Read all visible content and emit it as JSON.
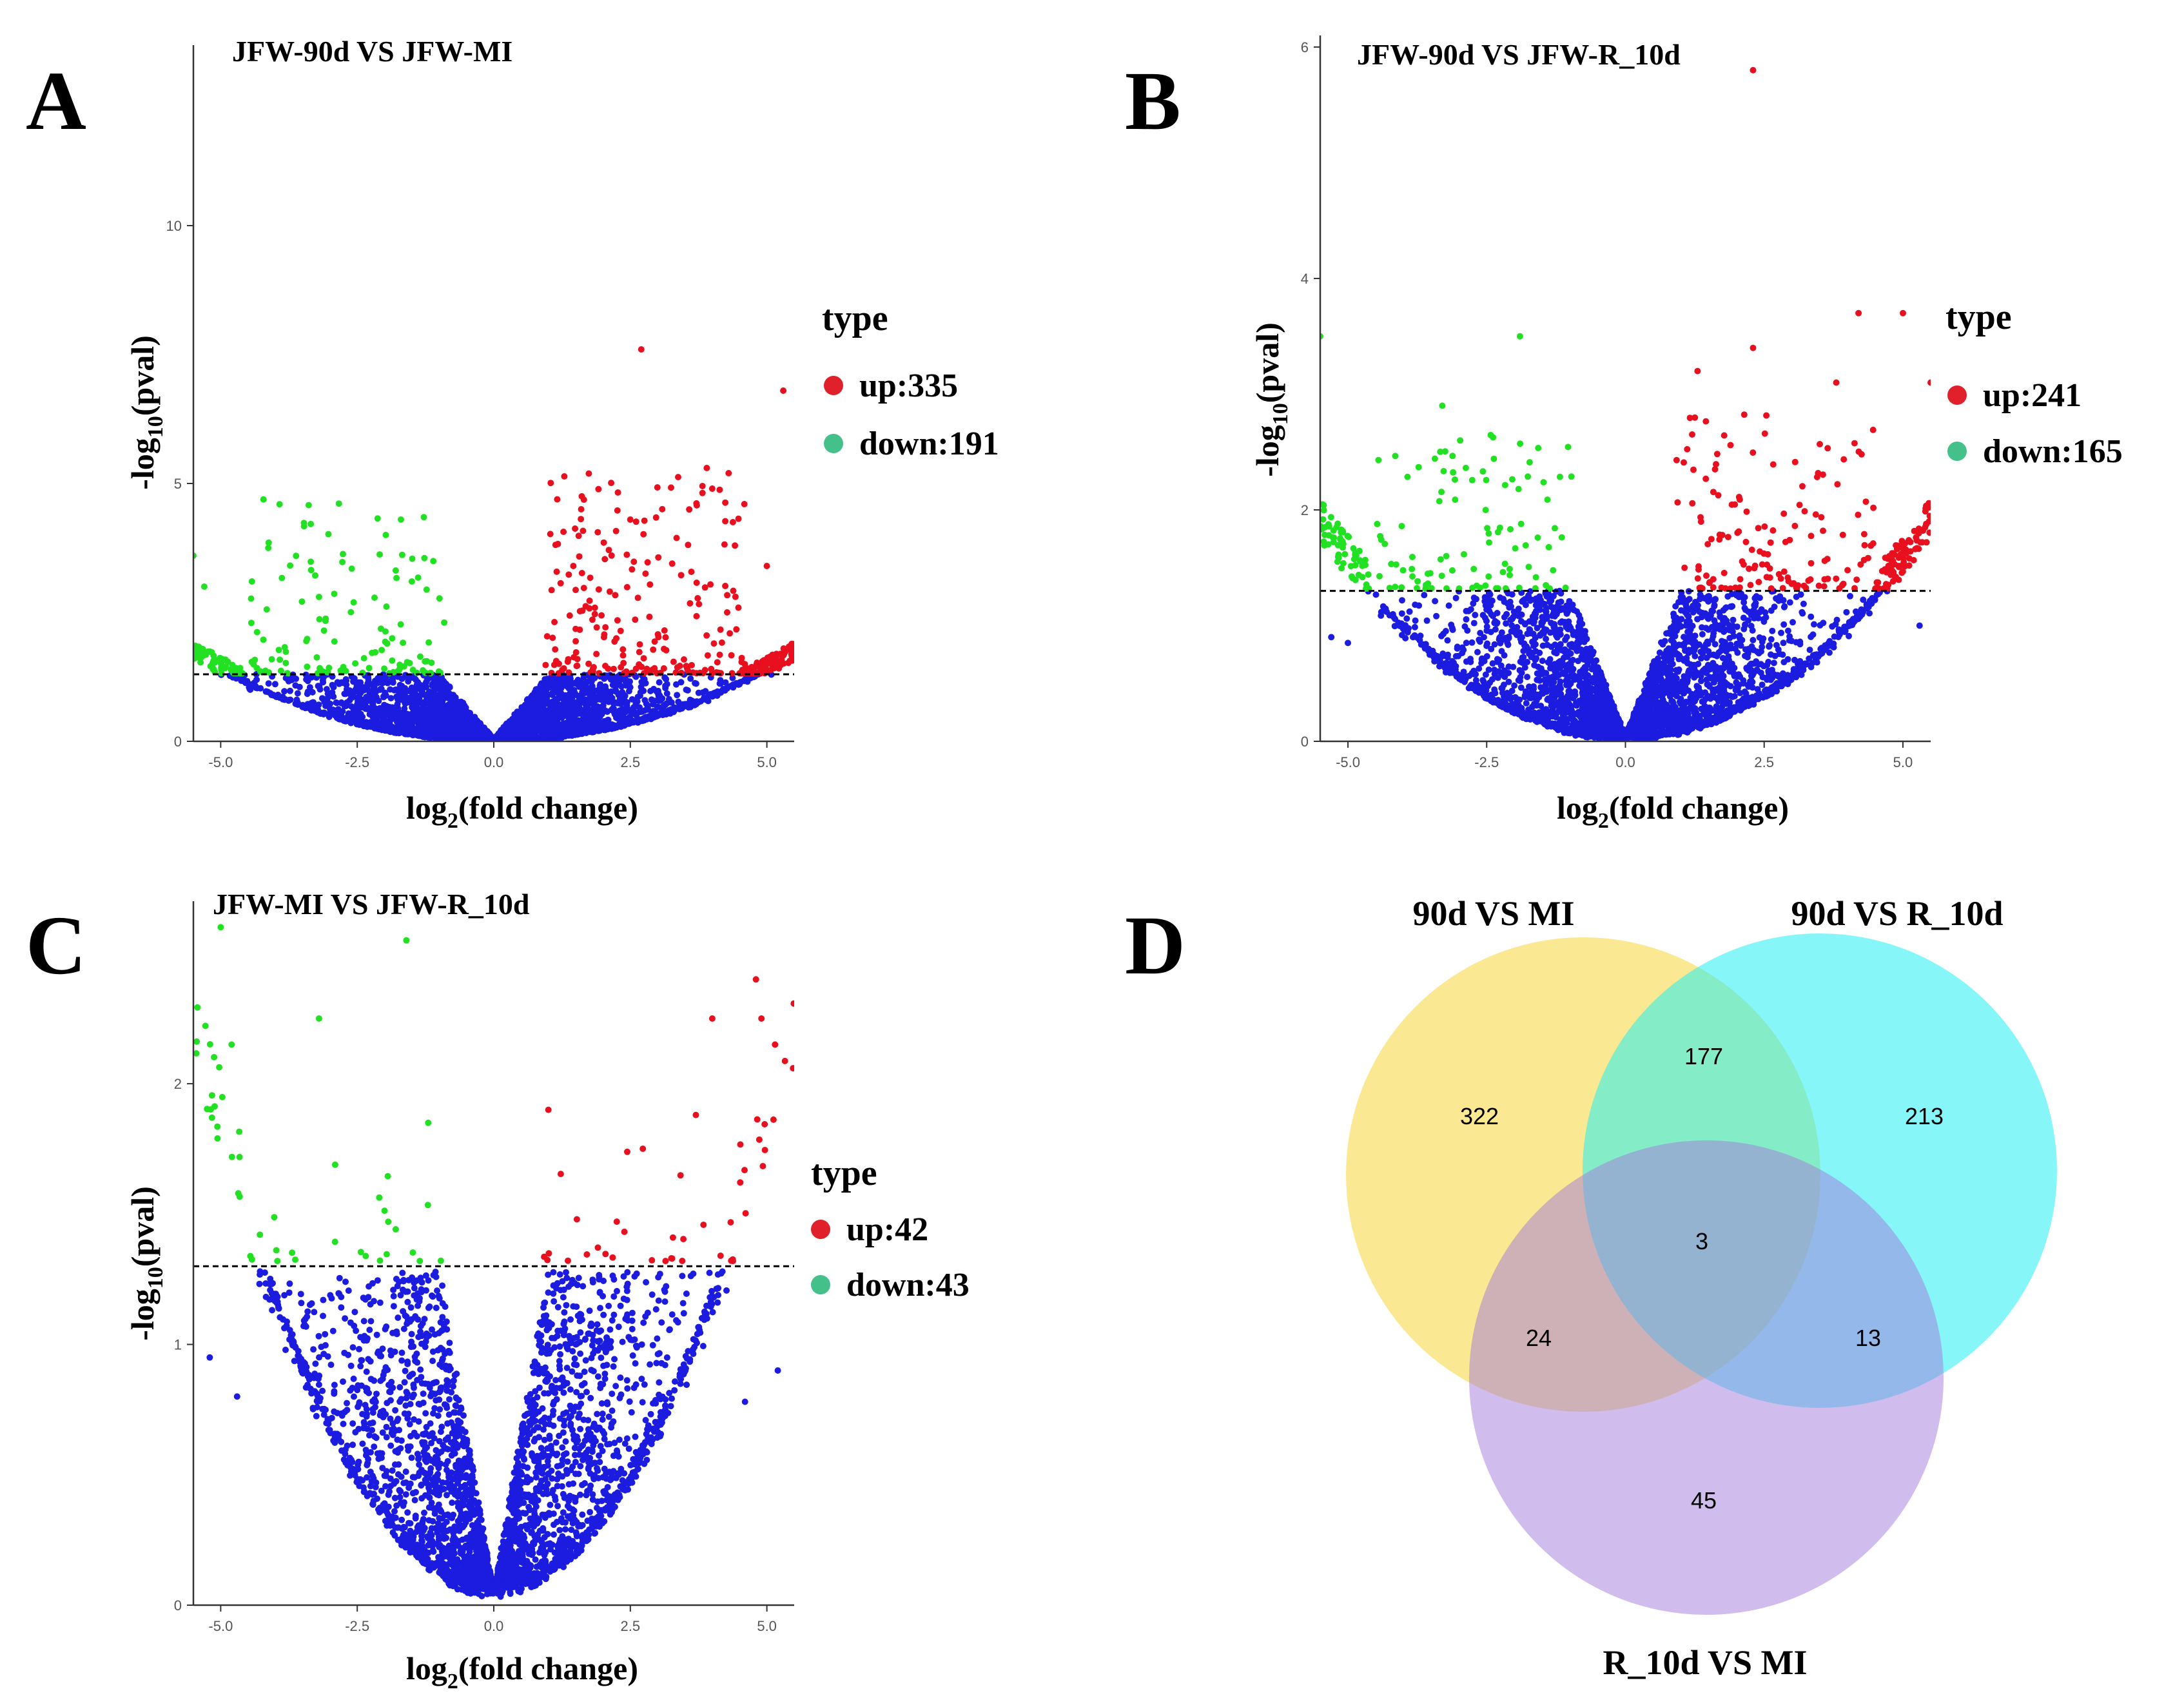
{
  "figure": {
    "panel_letters": [
      "A",
      "B",
      "C",
      "D"
    ]
  },
  "chart_data": [
    {
      "panel": "A",
      "type": "scatter",
      "subtype": "volcano",
      "title": "JFW-90d VS JFW-MI",
      "xlabel_pre": "log",
      "xlabel_sub": "2",
      "xlabel_post": "(fold change)",
      "ylabel_pre": "-log",
      "ylabel_sub": "10",
      "ylabel_post": "(pval)",
      "xlim": [
        -5.5,
        5.5
      ],
      "ylim": [
        0,
        13.5
      ],
      "xticks": [
        -5.0,
        -2.5,
        0.0,
        2.5,
        5.0
      ],
      "xtick_labels": [
        "-5.0",
        "-2.5",
        "0.0",
        "2.5",
        "5.0"
      ],
      "yticks": [
        0,
        5,
        10
      ],
      "ytick_labels": [
        "0",
        "5",
        "10"
      ],
      "threshold": 1.3,
      "legend": {
        "title": "type",
        "entries": [
          {
            "label": "up:335",
            "color": "#e0202a"
          },
          {
            "label": "down:191",
            "color": "#44c08a"
          }
        ]
      },
      "counts": {
        "up": 335,
        "down": 191
      },
      "colors": {
        "up": "#e8101f",
        "down": "#22e022",
        "ns": "#1c1ce0"
      },
      "ns_max": 1.3,
      "v_curve": {
        "a": 0.055,
        "b": 0.015
      },
      "outliers": [
        [
          2.7,
          7.6,
          "up"
        ],
        [
          5.3,
          6.8,
          "up"
        ],
        [
          3.9,
          5.3,
          "up"
        ],
        [
          4.3,
          5.2,
          "up"
        ],
        [
          4.0,
          4.9,
          "up"
        ],
        [
          1.6,
          4.5,
          "up"
        ],
        [
          2.5,
          4.3,
          "up"
        ],
        [
          -1.7,
          4.3,
          "down"
        ],
        [
          -5.5,
          3.6,
          "down"
        ],
        [
          -1.5,
          3.1,
          "down"
        ],
        [
          -3.2,
          2.8,
          "down"
        ],
        [
          5.0,
          3.4,
          "up"
        ],
        [
          -5.3,
          3.0,
          "down"
        ]
      ]
    },
    {
      "panel": "B",
      "type": "scatter",
      "subtype": "volcano",
      "title": "JFW-90d VS JFW-R_10d",
      "xlabel_pre": "log",
      "xlabel_sub": "2",
      "xlabel_post": "(fold change)",
      "ylabel_pre": "-log",
      "ylabel_sub": "10",
      "ylabel_post": "(pval)",
      "xlim": [
        -5.5,
        5.5
      ],
      "ylim": [
        0,
        6.1
      ],
      "xticks": [
        -5.0,
        -2.5,
        0.0,
        2.5,
        5.0
      ],
      "xtick_labels": [
        "-5.0",
        "-2.5",
        "0.0",
        "2.5",
        "5.0"
      ],
      "yticks": [
        0,
        2,
        4,
        6
      ],
      "ytick_labels": [
        "0",
        "2",
        "4",
        "6"
      ],
      "threshold": 1.3,
      "legend": {
        "title": "type",
        "entries": [
          {
            "label": "up:241",
            "color": "#e0202a"
          },
          {
            "label": "down:165",
            "color": "#44c08a"
          }
        ]
      },
      "counts": {
        "up": 241,
        "down": 165
      },
      "colors": {
        "up": "#e8101f",
        "down": "#22e022",
        "ns": "#1c1ce0"
      },
      "ns_max": 1.3,
      "v_curve": {
        "a": 0.06,
        "b": 0.03
      },
      "outliers": [
        [
          2.3,
          5.8,
          "up"
        ],
        [
          -1.9,
          3.5,
          "down"
        ],
        [
          4.2,
          3.7,
          "up"
        ],
        [
          5.0,
          3.7,
          "up"
        ],
        [
          2.3,
          3.4,
          "up"
        ],
        [
          1.3,
          3.2,
          "up"
        ],
        [
          3.8,
          3.1,
          "up"
        ],
        [
          -5.5,
          3.5,
          "down"
        ],
        [
          -3.3,
          2.9,
          "down"
        ],
        [
          5.5,
          3.1,
          "up"
        ],
        [
          -5.3,
          0.9,
          "ns"
        ],
        [
          -5.0,
          0.85,
          "ns"
        ],
        [
          5.3,
          1.0,
          "ns"
        ]
      ]
    },
    {
      "panel": "C",
      "type": "scatter",
      "subtype": "volcano",
      "title": "JFW-MI VS JFW-R_10d",
      "xlabel_pre": "log",
      "xlabel_sub": "2",
      "xlabel_post": "(fold change)",
      "ylabel_pre": "-log",
      "ylabel_sub": "10",
      "ylabel_post": "(pval)",
      "xlim": [
        -5.5,
        5.5
      ],
      "ylim": [
        0,
        2.7
      ],
      "xticks": [
        -5.0,
        -2.5,
        0.0,
        2.5,
        5.0
      ],
      "xtick_labels": [
        "-5.0",
        "-2.5",
        "0.0",
        "2.5",
        "5.0"
      ],
      "yticks": [
        0,
        1,
        2
      ],
      "ytick_labels": [
        "0",
        "1",
        "2"
      ],
      "threshold": 1.3,
      "legend": {
        "title": "type",
        "entries": [
          {
            "label": "up:42",
            "color": "#e0202a"
          },
          {
            "label": "down:43",
            "color": "#44c08a"
          }
        ]
      },
      "counts": {
        "up": 42,
        "down": 43
      },
      "colors": {
        "up": "#e8101f",
        "down": "#22e022",
        "ns": "#1c1ce0"
      },
      "ns_max": 1.28,
      "v_curve": {
        "a": 0.07,
        "b": 0.06
      },
      "outliers": [
        [
          -5.0,
          2.6,
          "down"
        ],
        [
          -1.6,
          2.55,
          "down"
        ],
        [
          -4.8,
          2.15,
          "down"
        ],
        [
          -3.2,
          2.25,
          "down"
        ],
        [
          -1.2,
          1.85,
          "down"
        ],
        [
          4.8,
          2.4,
          "up"
        ],
        [
          4.9,
          2.25,
          "up"
        ],
        [
          4.0,
          2.25,
          "up"
        ],
        [
          1.0,
          1.9,
          "up"
        ],
        [
          3.7,
          1.88,
          "up"
        ],
        [
          -5.2,
          0.95,
          "ns"
        ],
        [
          -4.7,
          0.8,
          "ns"
        ],
        [
          5.2,
          0.9,
          "ns"
        ],
        [
          4.6,
          0.78,
          "ns"
        ]
      ]
    },
    {
      "panel": "D",
      "type": "venn",
      "sets": [
        {
          "name": "90d VS MI",
          "color": "#f8d84a"
        },
        {
          "name": "90d VS R_10d",
          "color": "#22eef2"
        },
        {
          "name": "R_10d VS MI",
          "color": "#a27adc"
        }
      ],
      "regions": {
        "only_90d_vs_MI": 322,
        "only_90d_vs_R_10d": 213,
        "only_R_10d_vs_MI": 45,
        "90d_vs_MI_and_90d_vs_R_10d": 177,
        "90d_vs_MI_and_R_10d_vs_MI": 24,
        "90d_vs_R_10d_and_R_10d_vs_MI": 13,
        "all_three": 3
      }
    }
  ]
}
